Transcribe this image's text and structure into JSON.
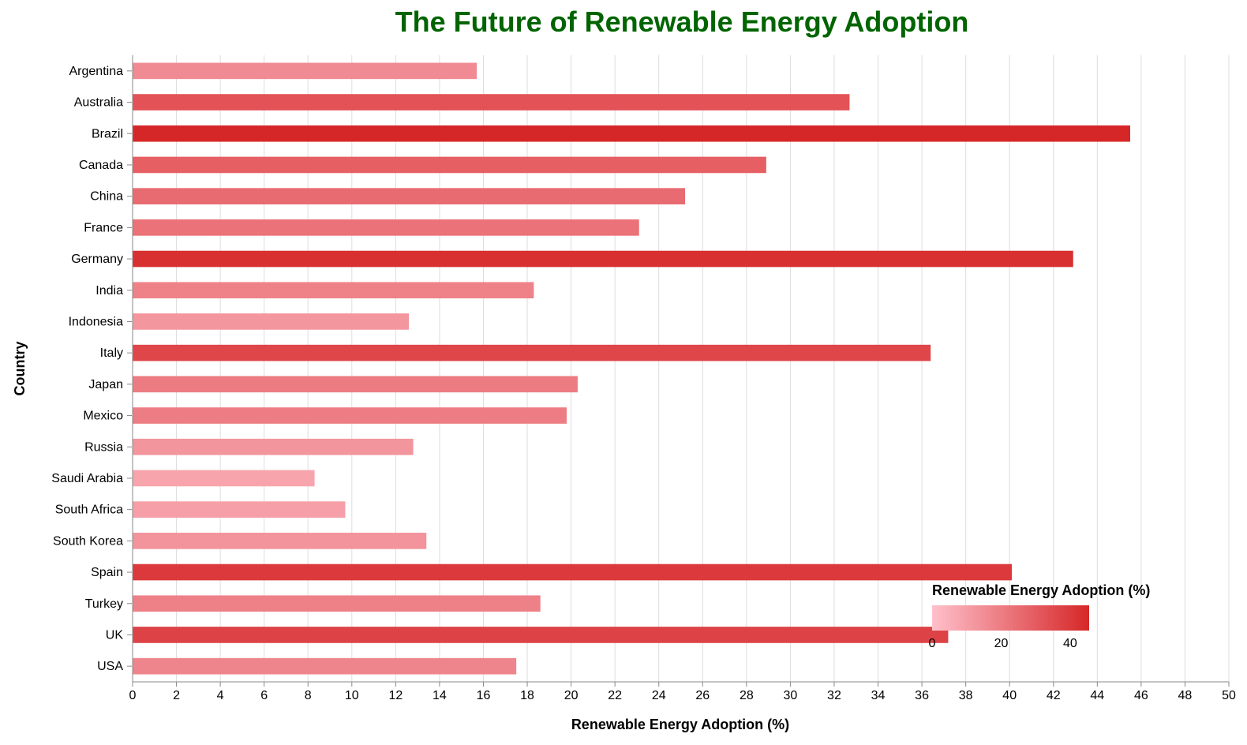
{
  "chart_data": {
    "type": "bar",
    "orientation": "horizontal",
    "title": "The Future of Renewable Energy Adoption",
    "xlabel": "Renewable Energy Adoption (%)",
    "ylabel": "Country",
    "xlim": [
      0,
      50
    ],
    "x_ticks": [
      "0",
      "2",
      "4",
      "6",
      "8",
      "10",
      "12",
      "14",
      "16",
      "18",
      "20",
      "22",
      "24",
      "26",
      "28",
      "30",
      "32",
      "34",
      "36",
      "38",
      "40",
      "42",
      "44",
      "46",
      "48",
      "50"
    ],
    "grid": "vertical",
    "categories": [
      "Argentina",
      "Australia",
      "Brazil",
      "Canada",
      "China",
      "France",
      "Germany",
      "India",
      "Indonesia",
      "Italy",
      "Japan",
      "Mexico",
      "Russia",
      "Saudi Arabia",
      "South Africa",
      "South Korea",
      "Spain",
      "Turkey",
      "UK",
      "USA"
    ],
    "values": [
      15.7,
      32.7,
      45.5,
      28.9,
      25.2,
      23.1,
      42.9,
      18.3,
      12.6,
      36.4,
      20.3,
      19.8,
      12.8,
      8.3,
      9.7,
      13.4,
      40.1,
      18.6,
      37.2,
      17.5
    ],
    "legend": {
      "title": "Renewable Energy Adoption (%)",
      "placement": "bottom-right",
      "labels": [
        "0",
        "20",
        "40"
      ],
      "label_values": [
        0,
        20,
        40
      ],
      "domain": [
        0,
        45.5
      ],
      "color_low": "#ffc0cb",
      "color_high": "#d62728"
    }
  }
}
